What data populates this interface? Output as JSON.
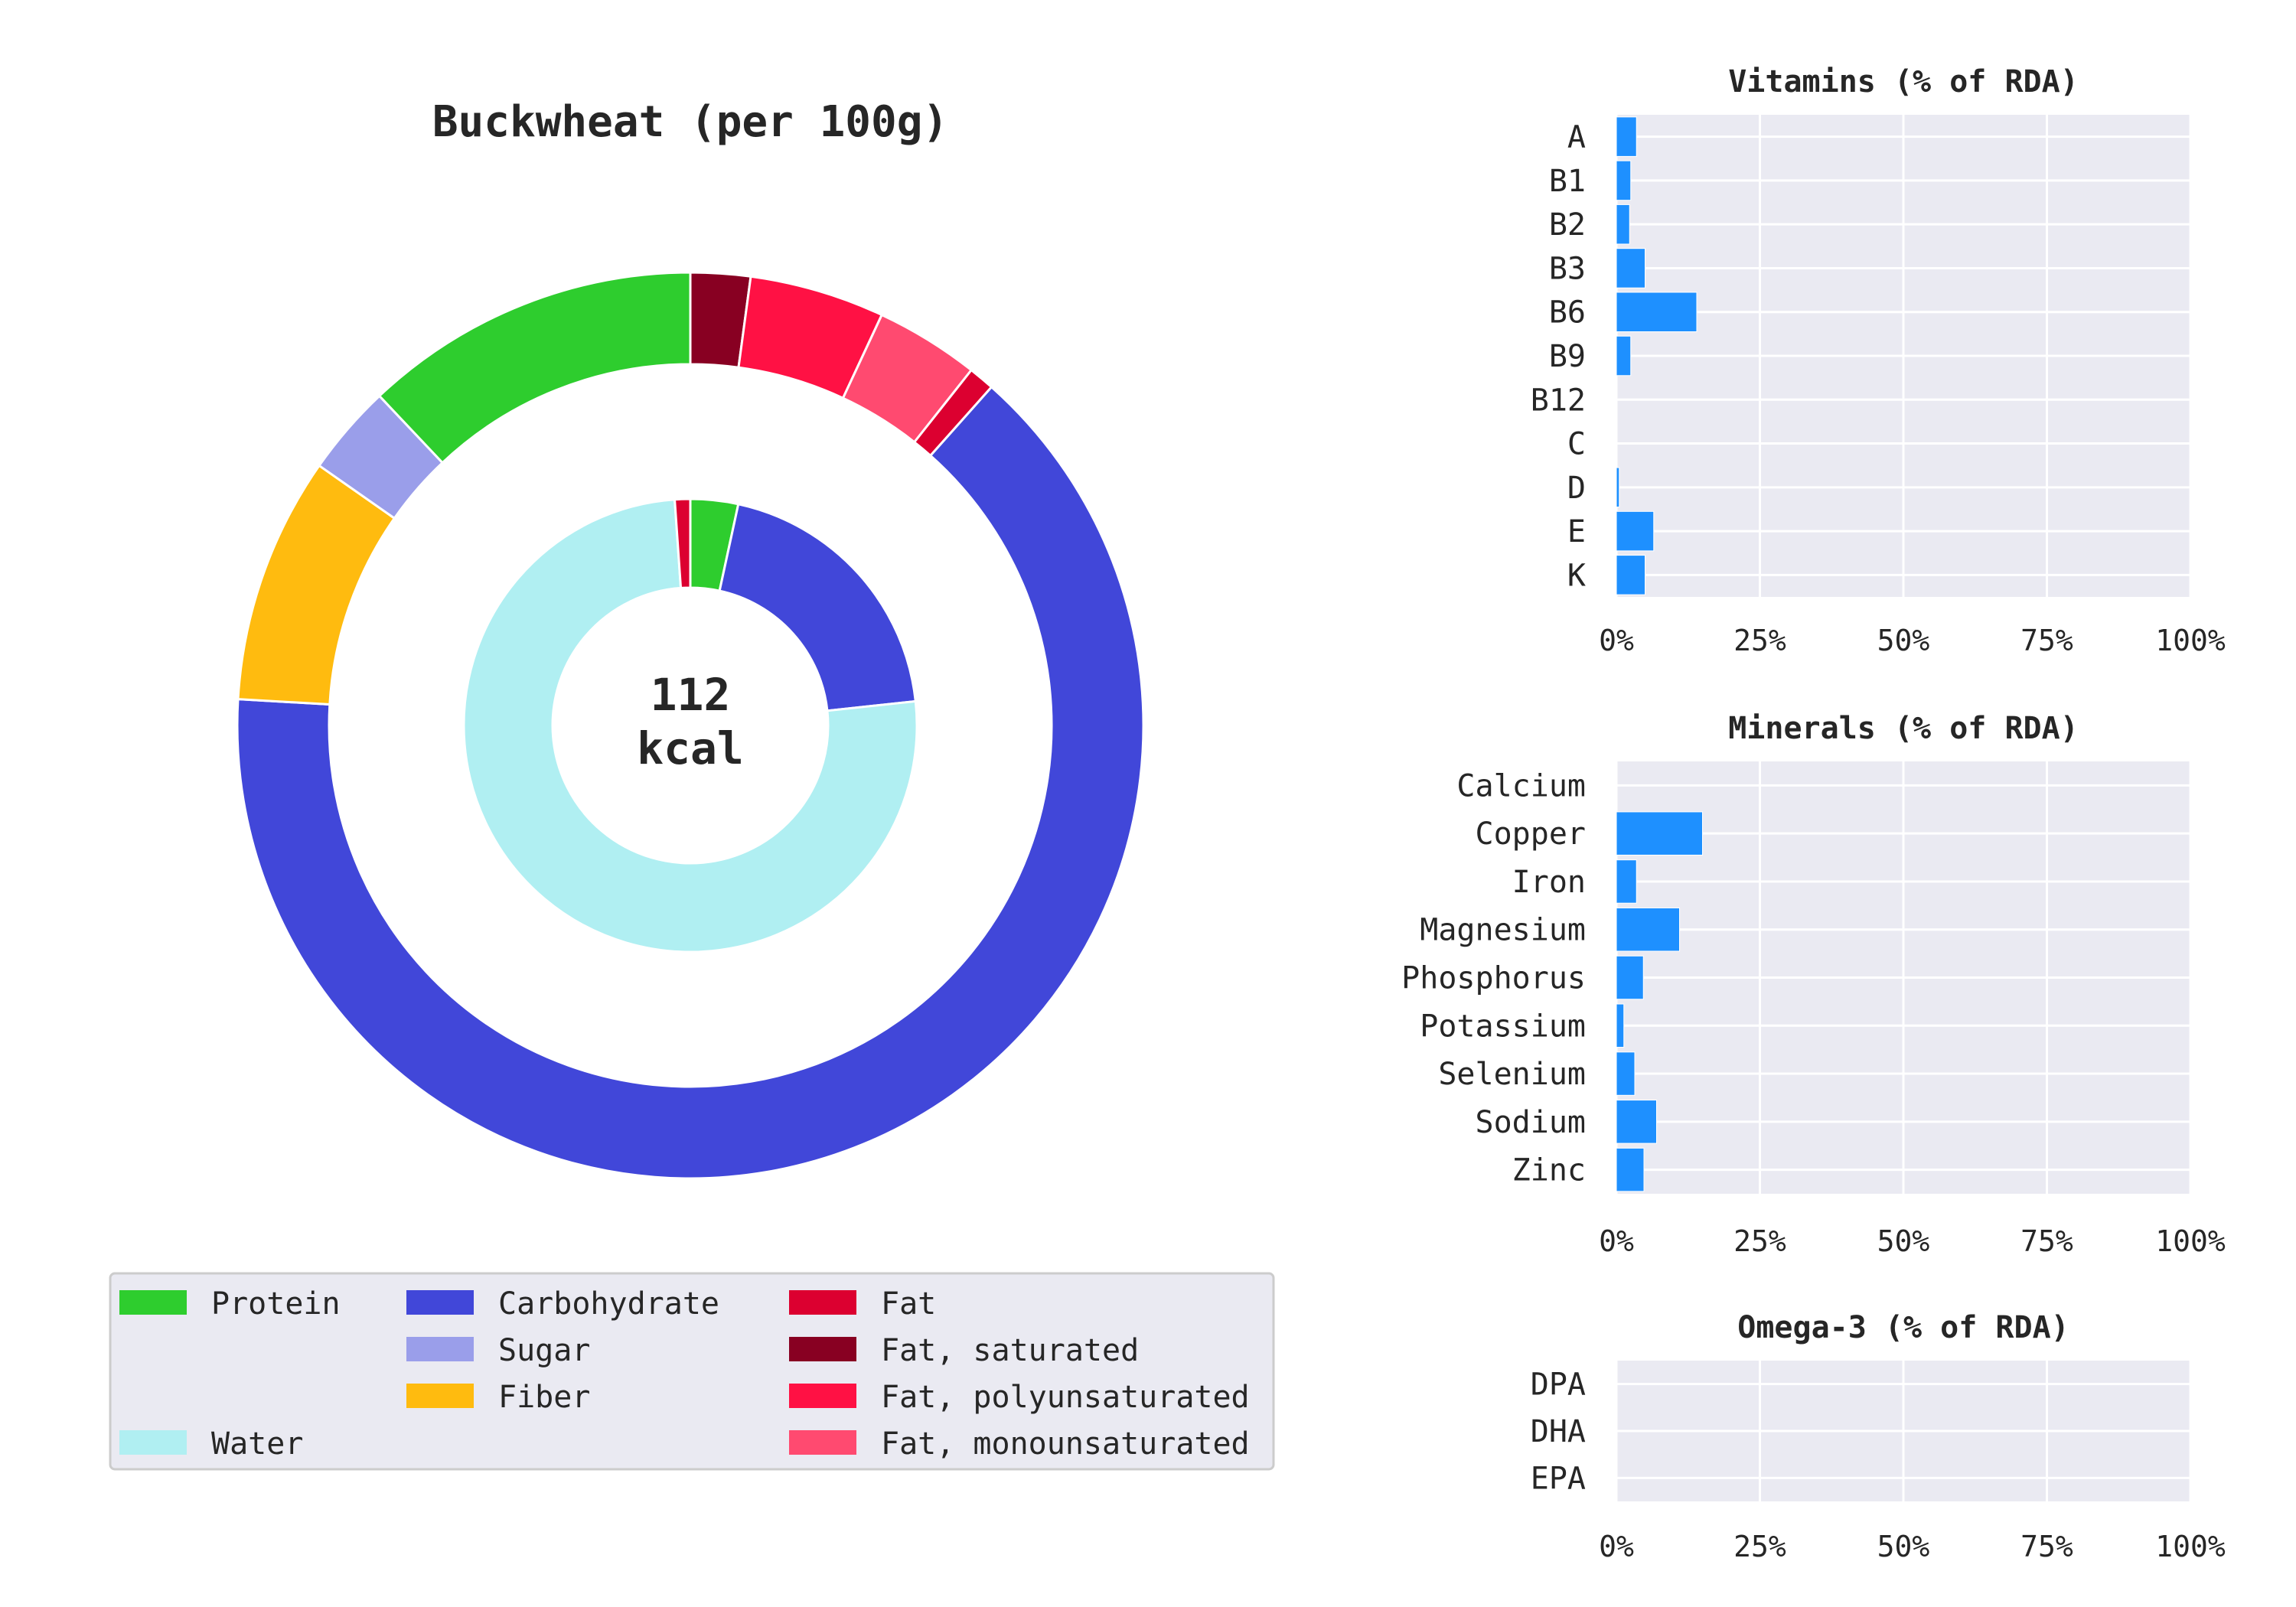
{
  "chart_data": [
    {
      "type": "pie",
      "title": "Buckwheat (per 100g)",
      "center_label": [
        "112",
        "kcal"
      ],
      "inner_ring": [
        {
          "name": "Protein",
          "value": 3.4,
          "color": "#2ecd2e"
        },
        {
          "name": "Carbohydrate",
          "value": 19.9,
          "color": "#4147d9"
        },
        {
          "name": "Water",
          "value": 75.6,
          "color": "#b0eff2"
        },
        {
          "name": "Fat",
          "value": 1.1,
          "color": "#dc0030"
        }
      ],
      "outer_ring": [
        {
          "name": "Fat, saturated",
          "value": 0.23,
          "color": "#880022"
        },
        {
          "name": "Fat, polyunsaturated",
          "value": 0.52,
          "color": "#ff1144"
        },
        {
          "name": "Fat, monounsaturated",
          "value": 0.4,
          "color": "#ff4a70"
        },
        {
          "name": "Fat",
          "value": 0.1,
          "color": "#dc0030"
        },
        {
          "name": "Carbohydrate",
          "value": 6.95,
          "color": "#4147d9"
        },
        {
          "name": "Fiber",
          "value": 0.95,
          "color": "#ffbb0f"
        },
        {
          "name": "Sugar",
          "value": 0.35,
          "color": "#9a9eea"
        },
        {
          "name": "Protein",
          "value": 1.3,
          "color": "#2ecd2e"
        }
      ],
      "legend": [
        {
          "label": "Protein",
          "color": "#2ecd2e"
        },
        {
          "label": "Carbohydrate",
          "color": "#4147d9"
        },
        {
          "label": "Fat",
          "color": "#dc0030"
        },
        {
          "label": "Sugar",
          "color": "#9a9eea"
        },
        {
          "label": "Fat, saturated",
          "color": "#880022"
        },
        {
          "label": "Fiber",
          "color": "#ffbb0f"
        },
        {
          "label": "Fat, polyunsaturated",
          "color": "#ff1144"
        },
        {
          "label": "Water",
          "color": "#b0eff2"
        },
        {
          "label": "Fat, monounsaturated",
          "color": "#ff4a70"
        }
      ]
    },
    {
      "type": "bar",
      "orientation": "horizontal",
      "title": "Vitamins (% of RDA)",
      "categories": [
        "A",
        "B1",
        "B2",
        "B3",
        "B6",
        "B9",
        "B12",
        "C",
        "D",
        "E",
        "K"
      ],
      "values": [
        3.5,
        2.5,
        2.3,
        5.0,
        14.0,
        2.5,
        0,
        0,
        0.5,
        6.5,
        5.0
      ],
      "xlim": [
        0,
        100
      ],
      "xticks": [
        "0%",
        "25%",
        "50%",
        "75%",
        "100%"
      ],
      "color": "#1e90ff",
      "background": "#eaeaf2"
    },
    {
      "type": "bar",
      "orientation": "horizontal",
      "title": "Minerals (% of RDA)",
      "categories": [
        "Calcium",
        "Copper",
        "Iron",
        "Magnesium",
        "Phosphorus",
        "Potassium",
        "Selenium",
        "Sodium",
        "Zinc"
      ],
      "values": [
        0,
        15.0,
        3.5,
        11.0,
        4.7,
        1.3,
        3.2,
        7.0,
        4.8
      ],
      "xlim": [
        0,
        100
      ],
      "xticks": [
        "0%",
        "25%",
        "50%",
        "75%",
        "100%"
      ],
      "color": "#1e90ff",
      "background": "#eaeaf2"
    },
    {
      "type": "bar",
      "orientation": "horizontal",
      "title": "Omega-3 (% of RDA)",
      "categories": [
        "DPA",
        "DHA",
        "EPA"
      ],
      "values": [
        0,
        0,
        0
      ],
      "xlim": [
        0,
        100
      ],
      "xticks": [
        "0%",
        "25%",
        "50%",
        "75%",
        "100%"
      ],
      "color": "#1e90ff",
      "background": "#eaeaf2"
    }
  ]
}
